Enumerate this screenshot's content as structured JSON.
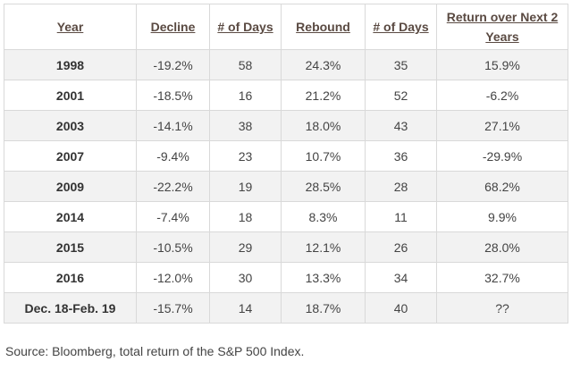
{
  "table": {
    "headers": [
      "Year",
      "Decline",
      "# of Days",
      "Rebound",
      "# of Days",
      "Return over Next 2 Years"
    ],
    "rows": [
      [
        "1998",
        "-19.2%",
        "58",
        "24.3%",
        "35",
        "15.9%"
      ],
      [
        "2001",
        "-18.5%",
        "16",
        "21.2%",
        "52",
        "-6.2%"
      ],
      [
        "2003",
        "-14.1%",
        "38",
        "18.0%",
        "43",
        "27.1%"
      ],
      [
        "2007",
        "-9.4%",
        "23",
        "10.7%",
        "36",
        "-29.9%"
      ],
      [
        "2009",
        "-22.2%",
        "19",
        "28.5%",
        "28",
        "68.2%"
      ],
      [
        "2014",
        "-7.4%",
        "18",
        "8.3%",
        "11",
        "9.9%"
      ],
      [
        "2015",
        "-10.5%",
        "29",
        "12.1%",
        "26",
        "28.0%"
      ],
      [
        "2016",
        "-12.0%",
        "30",
        "13.3%",
        "34",
        "32.7%"
      ],
      [
        "Dec. 18-Feb. 19",
        "-15.7%",
        "14",
        "18.7%",
        "40",
        "??"
      ]
    ]
  },
  "source": "Source: Bloomberg, total return of the S&P 500 Index.",
  "colors": {
    "header_text": "#5a4a42",
    "row_shade": "#f2f2f2",
    "border": "#d9d9d9"
  }
}
